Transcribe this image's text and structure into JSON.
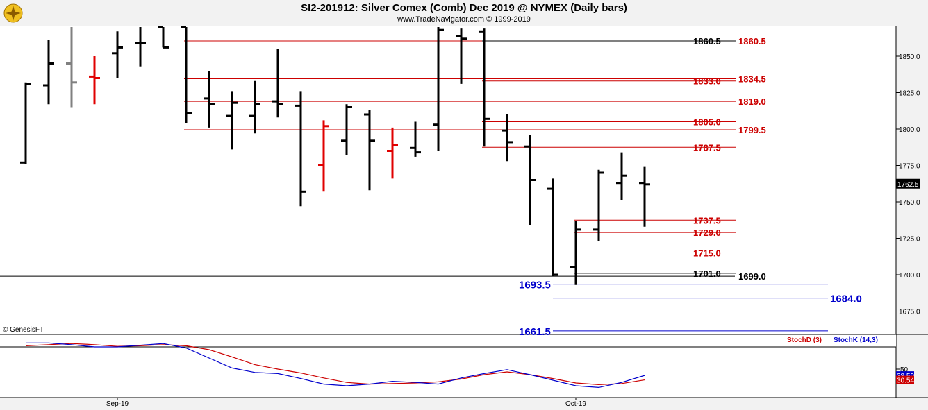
{
  "header": {
    "title": "SI2-201912:  Silver Comex (Comb) Dec 2019 @ NYMEX  (Daily bars)",
    "subtitle": "www.TradeNavigator.com © 1999-2019",
    "logo_icon": "trade-navigator-logo-icon"
  },
  "watermark": "© GenesisFT",
  "colors": {
    "up": "#000000",
    "down_red": "#e00000",
    "up_green": "#00cc00",
    "grey_bar": "#808080",
    "resistance": "#cc0000",
    "support": "#0000cc",
    "stochD": "#cc0000",
    "stochK": "#0000cc"
  },
  "chart_data": [
    {
      "type": "ohlc",
      "ylim": [
        1655,
        1870
      ],
      "yticks": [
        "1850.0",
        "1825.0",
        "1800.0",
        "1775.0",
        "1750.0",
        "1725.0",
        "1700.0",
        "1675.0"
      ],
      "last_price": "1762.5",
      "bars": [
        {
          "o": 1777,
          "h": 1832,
          "l": 1776,
          "c": 1831,
          "color": "black"
        },
        {
          "o": 1830,
          "h": 1861,
          "l": 1817,
          "c": 1845,
          "color": "black"
        },
        {
          "o": 1845,
          "h": 1870,
          "l": 1815,
          "c": 1832,
          "color": "grey"
        },
        {
          "o": 1836,
          "h": 1850,
          "l": 1817,
          "c": 1835,
          "color": "red"
        },
        {
          "o": 1852,
          "h": 1867,
          "l": 1835,
          "c": 1856,
          "color": "black"
        },
        {
          "o": 1859,
          "h": 1870,
          "l": 1843,
          "c": 1859,
          "color": "black"
        },
        {
          "o": 1870,
          "h": 1870,
          "l": 1856,
          "c": 1856,
          "color": "black"
        },
        {
          "o": 1870,
          "h": 1870,
          "l": 1804,
          "c": 1811,
          "color": "black"
        },
        {
          "o": 1821,
          "h": 1840,
          "l": 1801,
          "c": 1817,
          "color": "black"
        },
        {
          "o": 1809,
          "h": 1826,
          "l": 1786,
          "c": 1818,
          "color": "black"
        },
        {
          "o": 1809,
          "h": 1833,
          "l": 1797,
          "c": 1817,
          "color": "black"
        },
        {
          "o": 1819,
          "h": 1855,
          "l": 1808,
          "c": 1817,
          "color": "black"
        },
        {
          "o": 1816,
          "h": 1826,
          "l": 1747,
          "c": 1757,
          "color": "black"
        },
        {
          "o": 1775,
          "h": 1806,
          "l": 1757,
          "c": 1802,
          "color": "red"
        },
        {
          "o": 1792,
          "h": 1817,
          "l": 1782,
          "c": 1815,
          "color": "black"
        },
        {
          "o": 1810,
          "h": 1813,
          "l": 1758,
          "c": 1792,
          "color": "black"
        },
        {
          "o": 1785,
          "h": 1801,
          "l": 1766,
          "c": 1789,
          "color": "red"
        },
        {
          "o": 1787,
          "h": 1805,
          "l": 1781,
          "c": 1784,
          "color": "black"
        },
        {
          "o": 1803,
          "h": 1870,
          "l": 1785,
          "c": 1868,
          "color": "black"
        },
        {
          "o": 1864,
          "h": 1869,
          "l": 1831,
          "c": 1862,
          "color": "black"
        },
        {
          "o": 1867,
          "h": 1869,
          "l": 1788,
          "c": 1807,
          "color": "black"
        },
        {
          "o": 1799,
          "h": 1810,
          "l": 1778,
          "c": 1791,
          "color": "black"
        },
        {
          "o": 1788,
          "h": 1796,
          "l": 1734,
          "c": 1765,
          "color": "black"
        },
        {
          "o": 1759,
          "h": 1766,
          "l": 1699,
          "c": 1700,
          "color": "black"
        },
        {
          "o": 1705,
          "h": 1737,
          "l": 1693,
          "c": 1731,
          "color": "black"
        },
        {
          "o": 1731,
          "h": 1772,
          "l": 1723,
          "c": 1770,
          "color": "black"
        },
        {
          "o": 1763,
          "h": 1784,
          "l": 1751,
          "c": 1768,
          "color": "black"
        },
        {
          "o": 1763,
          "h": 1774,
          "l": 1733,
          "c": 1762,
          "color": "black"
        }
      ],
      "levels": [
        {
          "value": 1860.5,
          "label": "1860.5",
          "color": "red",
          "from": 7
        },
        {
          "value": 1860.5,
          "label": "1860.5",
          "color": "black",
          "from": 20
        },
        {
          "value": 1834.5,
          "label": "1834.5",
          "color": "red",
          "from": 7
        },
        {
          "value": 1833.0,
          "label": "1833.0",
          "color": "red",
          "from": 20
        },
        {
          "value": 1819.0,
          "label": "1819.0",
          "color": "red",
          "from": 7
        },
        {
          "value": 1805.0,
          "label": "1805.0",
          "color": "red",
          "from": 20
        },
        {
          "value": 1799.5,
          "label": "1799.5",
          "color": "red",
          "from": 7
        },
        {
          "value": 1787.5,
          "label": "1787.5",
          "color": "red",
          "from": 20
        },
        {
          "value": 1737.5,
          "label": "1737.5",
          "color": "red",
          "from": 24
        },
        {
          "value": 1729.0,
          "label": "1729.0",
          "color": "red",
          "from": 24
        },
        {
          "value": 1715.0,
          "label": "1715.0",
          "color": "red",
          "from": 24
        },
        {
          "value": 1701.0,
          "label": "1701.0",
          "color": "black",
          "from": 24
        },
        {
          "value": 1699.0,
          "label": "1699.0",
          "color": "black",
          "from": -1
        }
      ],
      "support_levels": [
        {
          "value": 1693.5,
          "label": "1693.5"
        },
        {
          "value": 1684.0,
          "label": "1684.0"
        },
        {
          "value": 1661.5,
          "label": "1661.5"
        }
      ],
      "x_labels": [
        {
          "bar": 4,
          "text": "Sep-19"
        },
        {
          "bar": 24,
          "text": "Oct-19"
        }
      ]
    },
    {
      "type": "line",
      "ylim": [
        0,
        100
      ],
      "ytick": "50",
      "series": [
        {
          "name": "StochD (3)",
          "values": [
            92,
            94,
            96,
            94,
            91,
            92,
            94,
            92,
            85,
            72,
            58,
            50,
            43,
            34,
            26,
            23,
            24,
            25,
            27,
            32,
            40,
            45,
            40,
            33,
            25,
            22,
            24,
            30.54
          ]
        },
        {
          "name": "StochK (14,3)",
          "values": [
            97,
            97,
            94,
            90,
            90,
            93,
            96,
            88,
            70,
            52,
            44,
            42,
            33,
            23,
            20,
            23,
            28,
            26,
            23,
            34,
            42,
            49,
            40,
            30,
            20,
            17,
            26,
            38.59
          ]
        }
      ],
      "last_values": [
        "38.59",
        "30.54"
      ]
    }
  ]
}
